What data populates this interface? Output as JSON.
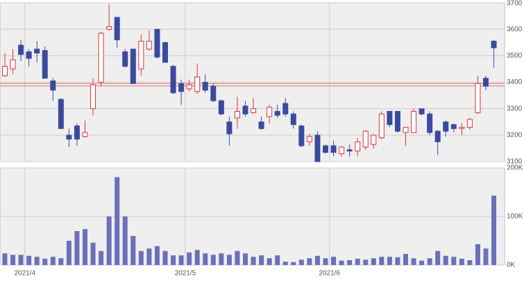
{
  "chart_data": [
    {
      "type": "candlestick",
      "up_color": "#d9343a",
      "down_color": "#3b4a9e",
      "open": [
        3425,
        3450,
        3540,
        3515,
        3525,
        3520,
        3405,
        3335,
        3200,
        3235,
        3195,
        3300,
        3400,
        3600,
        3645,
        3515,
        3525,
        3450,
        3525,
        3600,
        3550,
        3460,
        3395,
        3375,
        3365,
        3400,
        3385,
        3330,
        3250,
        3265,
        3310,
        3285,
        3250,
        3270,
        3290,
        3320,
        3280,
        3235,
        3175,
        3200,
        3160,
        3160,
        3130,
        3145,
        3140,
        3155,
        3165,
        3190,
        3290,
        3290,
        3210,
        3210,
        3300,
        3280,
        3215,
        3250,
        3240,
        3225,
        3230,
        3285,
        3415,
        3555
      ],
      "high": [
        3510,
        3525,
        3560,
        3525,
        3555,
        3535,
        3415,
        3340,
        3225,
        3245,
        3255,
        3415,
        3590,
        3695,
        3645,
        3525,
        3525,
        3580,
        3595,
        3600,
        3550,
        3465,
        3410,
        3410,
        3470,
        3430,
        3395,
        3335,
        3270,
        3345,
        3330,
        3340,
        3270,
        3315,
        3315,
        3340,
        3290,
        3240,
        3205,
        3215,
        3165,
        3180,
        3160,
        3165,
        3190,
        3220,
        3205,
        3290,
        3290,
        3290,
        3230,
        3300,
        3300,
        3290,
        3220,
        3255,
        3245,
        3245,
        3265,
        3425,
        3425,
        3560
      ],
      "low": [
        3420,
        3430,
        3480,
        3460,
        3475,
        3415,
        3330,
        3225,
        3155,
        3160,
        3190,
        3275,
        3385,
        3595,
        3530,
        3455,
        3395,
        3425,
        3520,
        3490,
        3475,
        3355,
        3315,
        3365,
        3355,
        3360,
        3325,
        3275,
        3160,
        3225,
        3270,
        3280,
        3220,
        3245,
        3265,
        3270,
        3225,
        3155,
        3160,
        3100,
        3130,
        3120,
        3120,
        3120,
        3120,
        3145,
        3150,
        3185,
        3230,
        3210,
        3160,
        3210,
        3275,
        3200,
        3125,
        3195,
        3210,
        3200,
        3220,
        3280,
        3370,
        3455
      ],
      "close": [
        3460,
        3485,
        3505,
        3490,
        3510,
        3415,
        3370,
        3225,
        3185,
        3185,
        3210,
        3390,
        3585,
        3610,
        3560,
        3460,
        3395,
        3555,
        3555,
        3495,
        3475,
        3360,
        3365,
        3390,
        3420,
        3370,
        3330,
        3280,
        3205,
        3290,
        3280,
        3300,
        3225,
        3305,
        3275,
        3280,
        3240,
        3160,
        3195,
        3100,
        3135,
        3135,
        3155,
        3140,
        3175,
        3215,
        3200,
        3280,
        3240,
        3215,
        3230,
        3290,
        3280,
        3210,
        3175,
        3215,
        3225,
        3230,
        3260,
        3395,
        3385,
        3530
      ],
      "ylim": [
        3100,
        3700
      ],
      "yticks": [
        3100,
        3200,
        3300,
        3400,
        3500,
        3600,
        3700
      ],
      "reference_lines": [
        {
          "value": 3395,
          "color": "#e07070"
        },
        {
          "value": 3386,
          "color": "#e07070"
        }
      ],
      "grid": true
    },
    {
      "type": "bar",
      "color": "#6b70b8",
      "categories": [
        null,
        null,
        null,
        "2021/4",
        null,
        null,
        null,
        null,
        null,
        null,
        null,
        null,
        null,
        null,
        null,
        null,
        null,
        null,
        null,
        null,
        null,
        null,
        null,
        "2021/5",
        null,
        null,
        null,
        null,
        null,
        null,
        null,
        null,
        null,
        null,
        null,
        null,
        null,
        null,
        null,
        null,
        null,
        "2021/6",
        null,
        null,
        null,
        null,
        null,
        null,
        null,
        null,
        null,
        null,
        null,
        null,
        null,
        null,
        null,
        null,
        null,
        null,
        null,
        null
      ],
      "values": [
        24000,
        21000,
        21000,
        19000,
        17000,
        13000,
        17000,
        14000,
        50000,
        70000,
        74000,
        46000,
        29000,
        100000,
        181000,
        100000,
        60000,
        29000,
        34000,
        39000,
        29000,
        20000,
        20000,
        26000,
        31000,
        24000,
        21000,
        24000,
        21000,
        29000,
        24000,
        17000,
        20000,
        14000,
        20000,
        7000,
        6000,
        11000,
        14000,
        19000,
        14000,
        17000,
        9000,
        10000,
        13000,
        11000,
        14000,
        17000,
        17000,
        16000,
        23000,
        14000,
        9000,
        14000,
        29000,
        19000,
        17000,
        13000,
        10000,
        43000,
        34000,
        143000
      ],
      "ylim": [
        0,
        200000
      ],
      "yticks": [
        {
          "value": 0,
          "label": "0K"
        },
        {
          "value": 100000,
          "label": "100K"
        },
        {
          "value": 200000,
          "label": "200K"
        }
      ],
      "grid": true
    }
  ]
}
